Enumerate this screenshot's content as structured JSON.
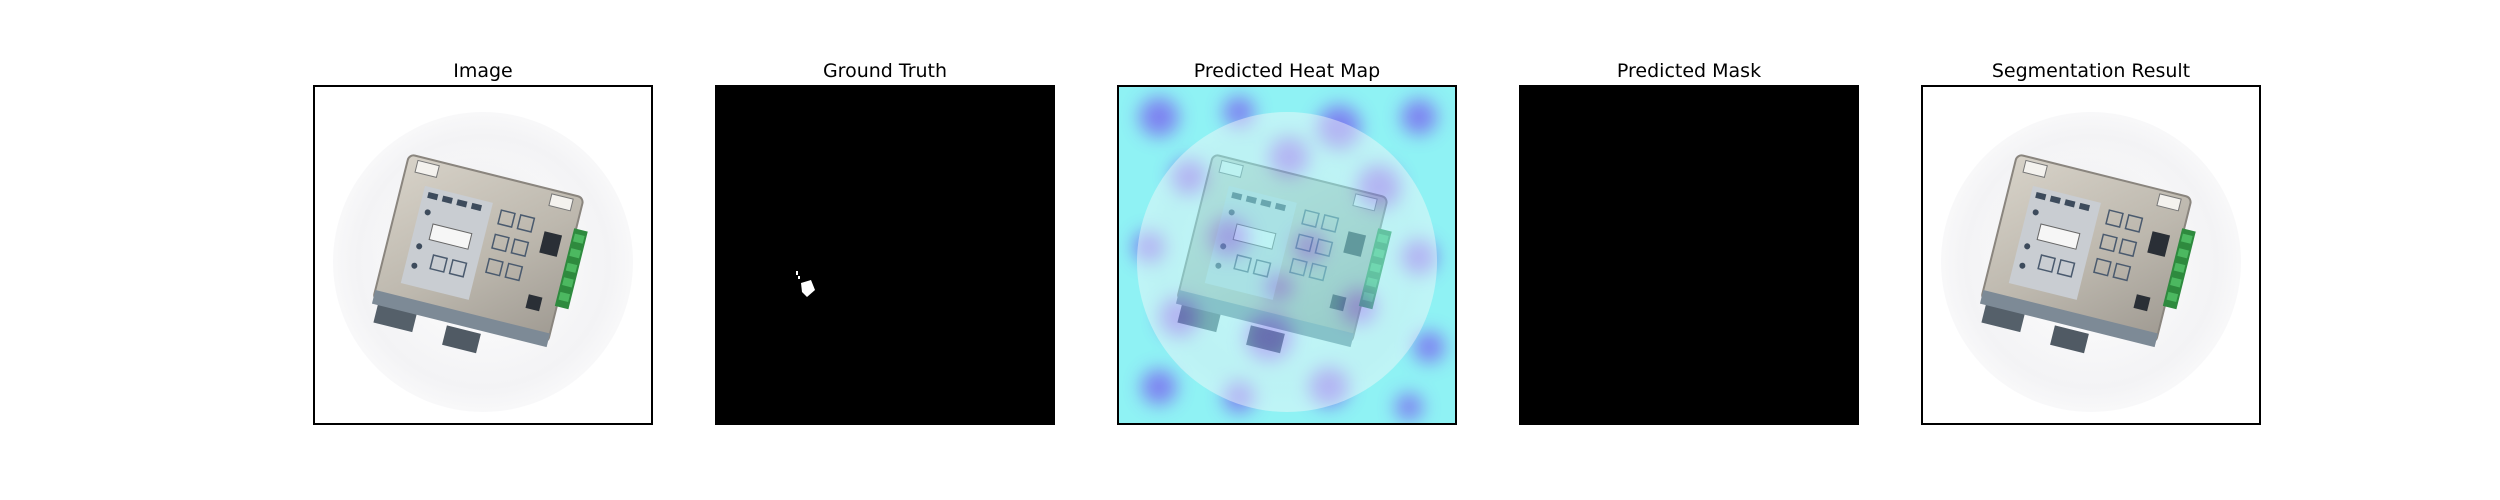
{
  "panels": [
    {
      "title": "Image",
      "icon": "device-photo-icon"
    },
    {
      "title": "Ground Truth",
      "icon": "ground-truth-mask-icon"
    },
    {
      "title": "Predicted Heat Map",
      "icon": "heat-map-overlay-icon"
    },
    {
      "title": "Predicted Mask",
      "icon": "predicted-mask-icon"
    },
    {
      "title": "Segmentation Result",
      "icon": "segmentation-result-icon"
    }
  ],
  "colors": {
    "mask_background": "#000000",
    "mask_foreground": "#ffffff",
    "heat_low": "#8ff2f4",
    "heat_high": "#7a70f0"
  }
}
